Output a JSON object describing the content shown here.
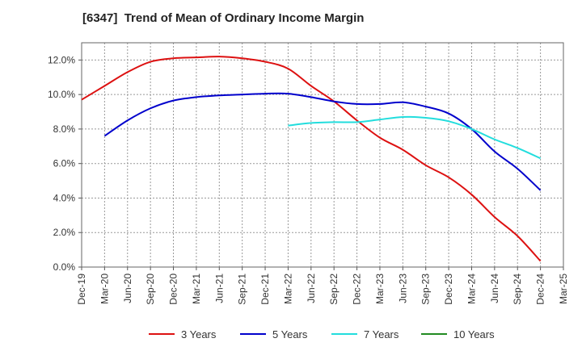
{
  "chart_data": {
    "type": "line",
    "title": "[6347]  Trend of Mean of Ordinary Income Margin",
    "xlabel": "",
    "ylabel": "",
    "categories": [
      "Dec-19",
      "Mar-20",
      "Jun-20",
      "Sep-20",
      "Dec-20",
      "Mar-21",
      "Jun-21",
      "Sep-21",
      "Dec-21",
      "Mar-22",
      "Jun-22",
      "Sep-22",
      "Dec-22",
      "Mar-23",
      "Jun-23",
      "Sep-23",
      "Dec-23",
      "Mar-24",
      "Jun-24",
      "Sep-24",
      "Dec-24",
      "Mar-25"
    ],
    "ylim": [
      0,
      13
    ],
    "yticks": [
      0,
      2,
      4,
      6,
      8,
      10,
      12
    ],
    "ytick_labels": [
      "0.0%",
      "2.0%",
      "4.0%",
      "6.0%",
      "8.0%",
      "10.0%",
      "12.0%"
    ],
    "grid": true,
    "legend_position": "bottom",
    "series": [
      {
        "name": "3 Years",
        "color": "#dd1111",
        "values": [
          9.7,
          10.5,
          11.3,
          11.9,
          12.1,
          12.15,
          12.2,
          12.1,
          11.9,
          11.5,
          10.5,
          9.6,
          8.5,
          7.5,
          6.8,
          5.9,
          5.2,
          4.2,
          2.9,
          1.8,
          0.35,
          null
        ]
      },
      {
        "name": "5 Years",
        "color": "#0000cc",
        "values": [
          null,
          7.6,
          8.5,
          9.2,
          9.65,
          9.85,
          9.95,
          10.0,
          10.05,
          10.05,
          9.85,
          9.6,
          9.45,
          9.45,
          9.55,
          9.3,
          8.9,
          8.0,
          6.7,
          5.7,
          4.45,
          null
        ]
      },
      {
        "name": "7 Years",
        "color": "#22dddd",
        "values": [
          null,
          null,
          null,
          null,
          null,
          null,
          null,
          null,
          null,
          8.2,
          8.35,
          8.4,
          8.4,
          8.55,
          8.7,
          8.65,
          8.45,
          8.0,
          7.4,
          6.9,
          6.3,
          null
        ]
      },
      {
        "name": "10 Years",
        "color": "#228b22",
        "values": [
          null,
          null,
          null,
          null,
          null,
          null,
          null,
          null,
          null,
          null,
          null,
          null,
          null,
          null,
          null,
          null,
          null,
          null,
          null,
          null,
          null,
          null
        ]
      }
    ]
  }
}
